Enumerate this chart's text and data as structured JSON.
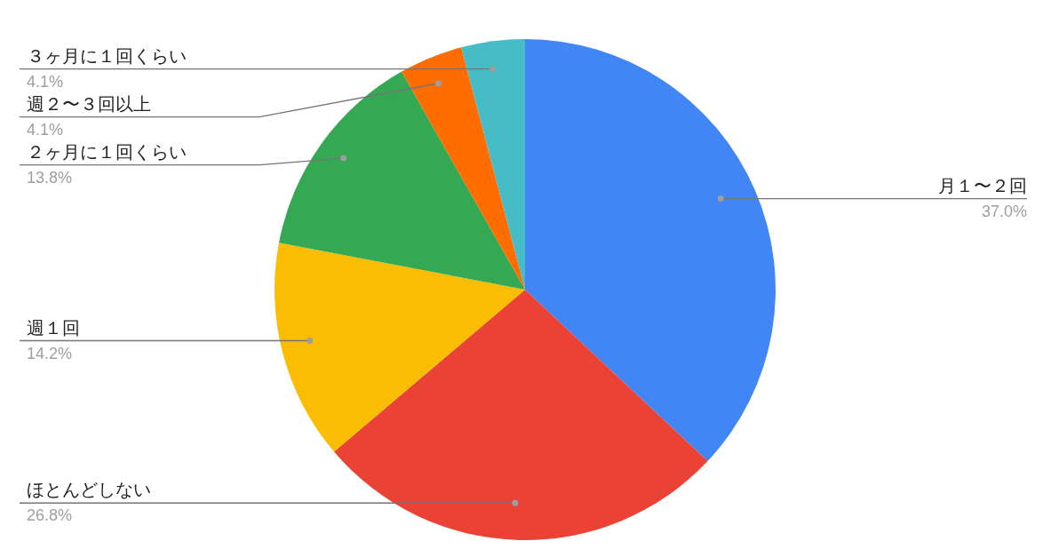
{
  "chart_data": {
    "type": "pie",
    "categories": [
      "月１〜２回",
      "ほとんどしない",
      "週１回",
      "２ヶ月に１回くらい",
      "週２〜３回以上",
      "３ヶ月に１回くらい"
    ],
    "values": [
      37.0,
      26.8,
      14.2,
      13.8,
      4.1,
      4.1
    ],
    "colors": [
      "#4285f4",
      "#ea4335",
      "#fbbc04",
      "#34a853",
      "#ff6d01",
      "#46bdc6"
    ],
    "value_labels": [
      "37.0%",
      "26.8%",
      "14.2%",
      "13.8%",
      "4.1%",
      "4.1%"
    ],
    "legend": false
  }
}
